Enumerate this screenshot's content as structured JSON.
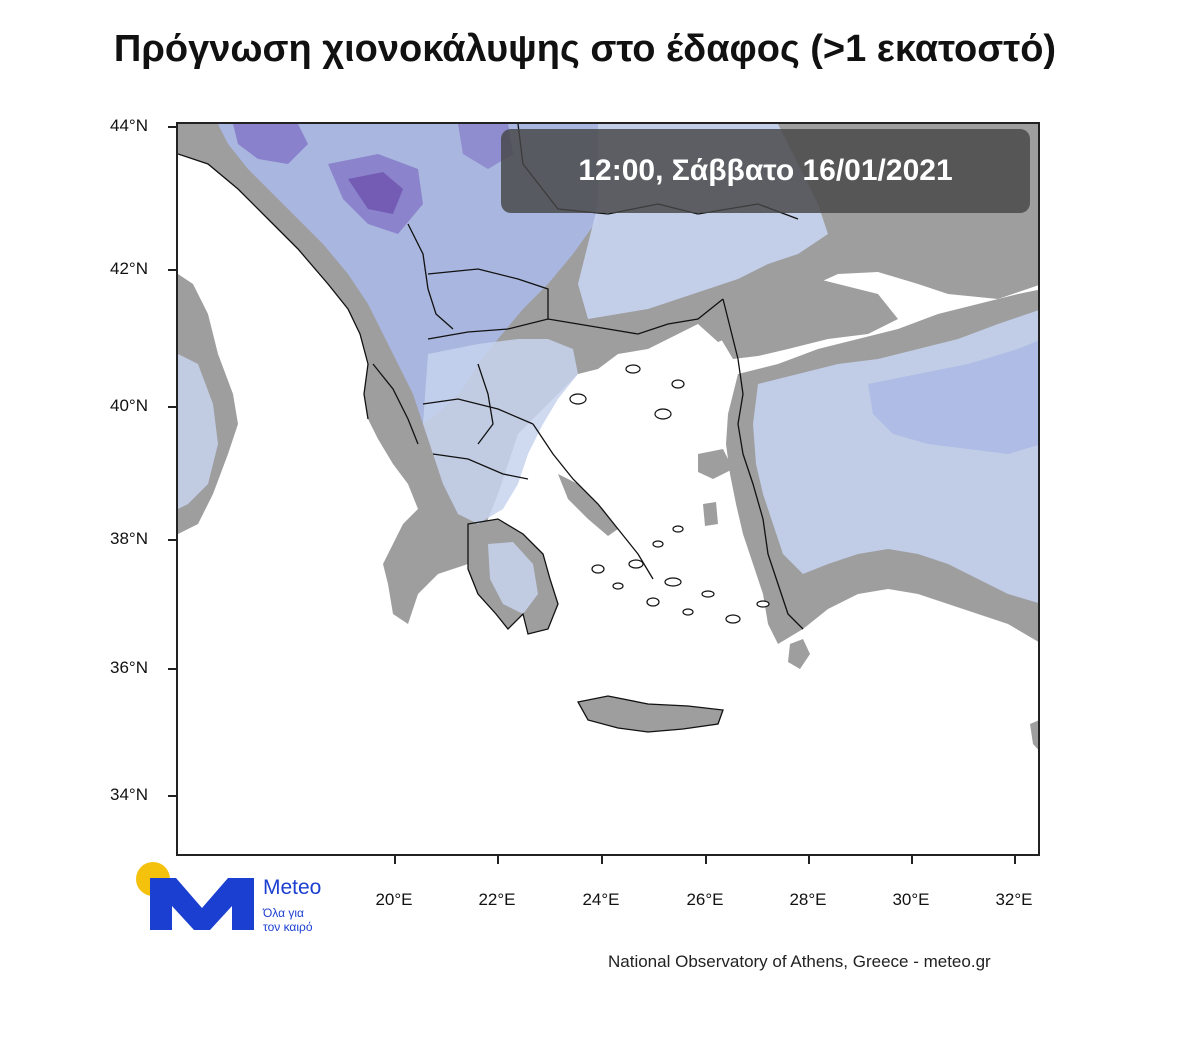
{
  "title": "Πρόγνωση χιονοκάλυψης στο έδαφος (>1 εκατοστό)",
  "time_banner": "12:00, Σάββατο 16/01/2021",
  "axes": {
    "lat_labels": [
      "44°N",
      "42°N",
      "40°N",
      "38°N",
      "36°N",
      "34°N"
    ],
    "lon_labels": [
      "20°E",
      "22°E",
      "24°E",
      "26°E",
      "28°E",
      "30°E",
      "32°E"
    ]
  },
  "logo": {
    "name": "Meteo",
    "tagline_line1": "Όλα για",
    "tagline_line2": "τον καιρό"
  },
  "credit": "National Observatory of Athens, Greece - meteo.gr",
  "colors": {
    "land": "#9e9e9e",
    "sea": "#ffffff",
    "snow_light": "#dde6f3",
    "snow_medium": "#aab8e6",
    "snow_heavy": "#7f6fc4",
    "snow_deep": "#6b4aa8",
    "logo_blue": "#1b3fd1",
    "logo_sun": "#f4c20d"
  }
}
